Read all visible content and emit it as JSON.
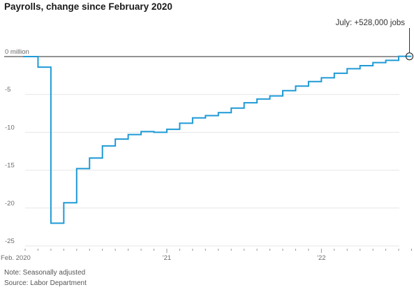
{
  "chart_data": {
    "type": "line",
    "title": "Payrolls, change since February 2020",
    "x_tick_labels": [
      "Feb. 2020",
      "'21",
      "'22"
    ],
    "y_tick_labels": [
      "0 million",
      "-5",
      "-10",
      "-15",
      "-20",
      "-25"
    ],
    "y_ticks": [
      0,
      -5,
      -10,
      -15,
      -20,
      -25
    ],
    "ylim": [
      -25,
      0
    ],
    "step": true,
    "annotation": "July: +528,000 jobs",
    "series": [
      {
        "color": "#1f9ad6",
        "x": [
          "2020-02",
          "2020-03",
          "2020-04",
          "2020-05",
          "2020-06",
          "2020-07",
          "2020-08",
          "2020-09",
          "2020-10",
          "2020-11",
          "2020-12",
          "2021-01",
          "2021-02",
          "2021-03",
          "2021-04",
          "2021-05",
          "2021-06",
          "2021-07",
          "2021-08",
          "2021-09",
          "2021-10",
          "2021-11",
          "2021-12",
          "2022-01",
          "2022-02",
          "2022-03",
          "2022-04",
          "2022-05",
          "2022-06",
          "2022-07"
        ],
        "values": [
          0,
          -1.4,
          -22.0,
          -19.3,
          -14.8,
          -13.4,
          -11.8,
          -10.9,
          -10.3,
          -9.9,
          -10.0,
          -9.6,
          -8.8,
          -8.1,
          -7.8,
          -7.4,
          -6.8,
          -6.1,
          -5.6,
          -5.2,
          -4.5,
          -3.9,
          -3.3,
          -2.8,
          -2.2,
          -1.6,
          -1.2,
          -0.8,
          -0.5,
          0.03
        ]
      }
    ]
  },
  "notes": {
    "line1": "Note: Seasonally adjusted",
    "line2": "Source: Labor Department"
  }
}
